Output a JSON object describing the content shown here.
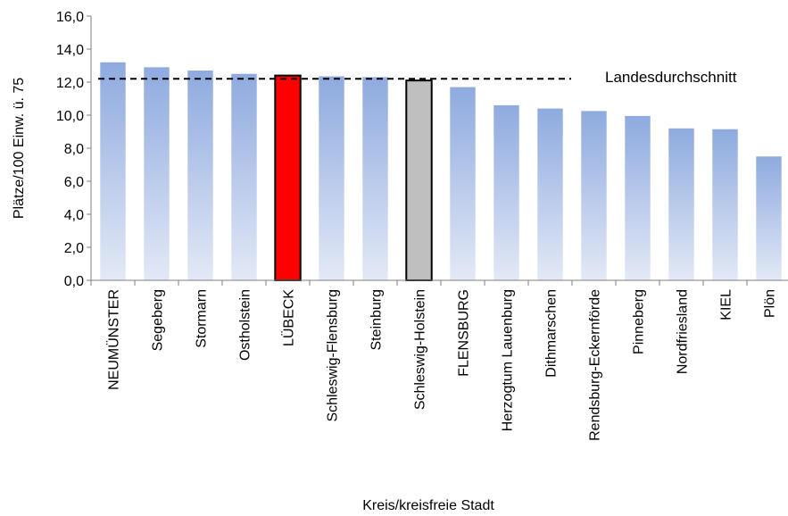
{
  "chart_data": {
    "type": "bar",
    "title": "",
    "xlabel": "Kreis/kreisfreie Stadt",
    "ylabel": "Plätze/100 Einw. ü. 75",
    "ylim": [
      0,
      16
    ],
    "ytick_values": [
      0,
      2,
      4,
      6,
      8,
      10,
      12,
      14,
      16
    ],
    "ytick_labels": [
      "0,0",
      "2,0",
      "4,0",
      "6,0",
      "8,0",
      "10,0",
      "12,0",
      "14,0",
      "16,0"
    ],
    "grid": false,
    "categories": [
      "NEUMÜNSTER",
      "Segeberg",
      "Stormarn",
      "Ostholstein",
      "LÜBECK",
      "Schleswig-Flensburg",
      "Steinburg",
      "Schleswig-Holstein",
      "FLENSBURG",
      "Herzogtum Lauenburg",
      "Dithmarschen",
      "Rendsburg-Eckernförde",
      "Pinneberg",
      "Nordfriesland",
      "KIEL",
      "Plön"
    ],
    "values": [
      13.2,
      12.9,
      12.7,
      12.5,
      12.4,
      12.35,
      12.3,
      12.1,
      11.7,
      10.6,
      10.4,
      10.25,
      9.95,
      9.2,
      9.15,
      7.5
    ],
    "highlights": {
      "LÜBECK": "#ff0000",
      "Schleswig-Holstein": "#bfbfbf"
    },
    "bar_gradient": {
      "top": "#8eaadf",
      "bottom": "#e3e9f6"
    },
    "reference_line": {
      "label": "Landesdurchschnitt",
      "value": 12.2,
      "style": "dashed"
    }
  }
}
